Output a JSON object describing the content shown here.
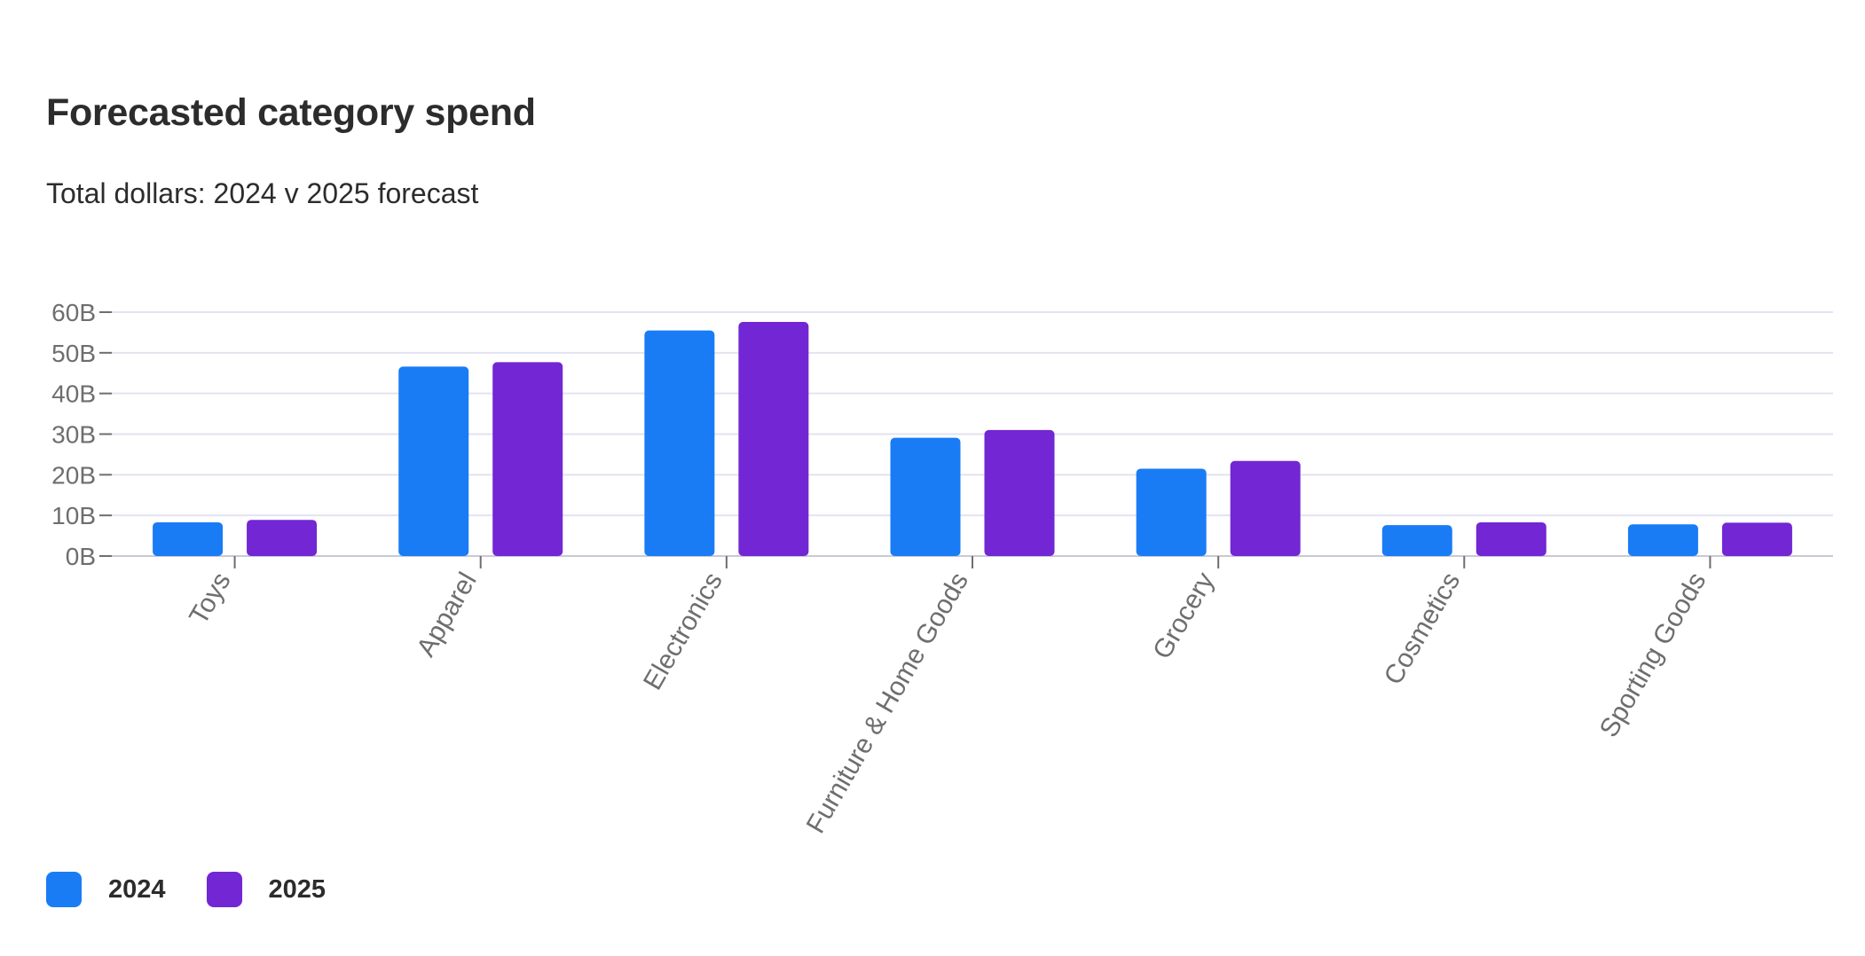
{
  "chart_data": {
    "type": "bar",
    "title": "Forecasted category spend",
    "subtitle": "Total dollars: 2024 v 2025 forecast",
    "categories": [
      "Toys",
      "Apparel",
      "Electronics",
      "Furniture & Home Goods",
      "Grocery",
      "Cosmetics",
      "Sporting Goods"
    ],
    "series": [
      {
        "name": "2024",
        "color": "#1a7cf5",
        "values": [
          8.3,
          46.6,
          55.5,
          29.1,
          21.5,
          7.6,
          7.8
        ]
      },
      {
        "name": "2025",
        "color": "#7326d3",
        "values": [
          8.9,
          47.7,
          57.6,
          31.0,
          23.4,
          8.3,
          8.2
        ]
      }
    ],
    "yticks": [
      "0B",
      "10B",
      "20B",
      "30B",
      "40B",
      "50B",
      "60B"
    ],
    "ylim": [
      0,
      60
    ],
    "xlabel": "",
    "ylabel": "",
    "grid": true,
    "legend": "bottom-left"
  }
}
